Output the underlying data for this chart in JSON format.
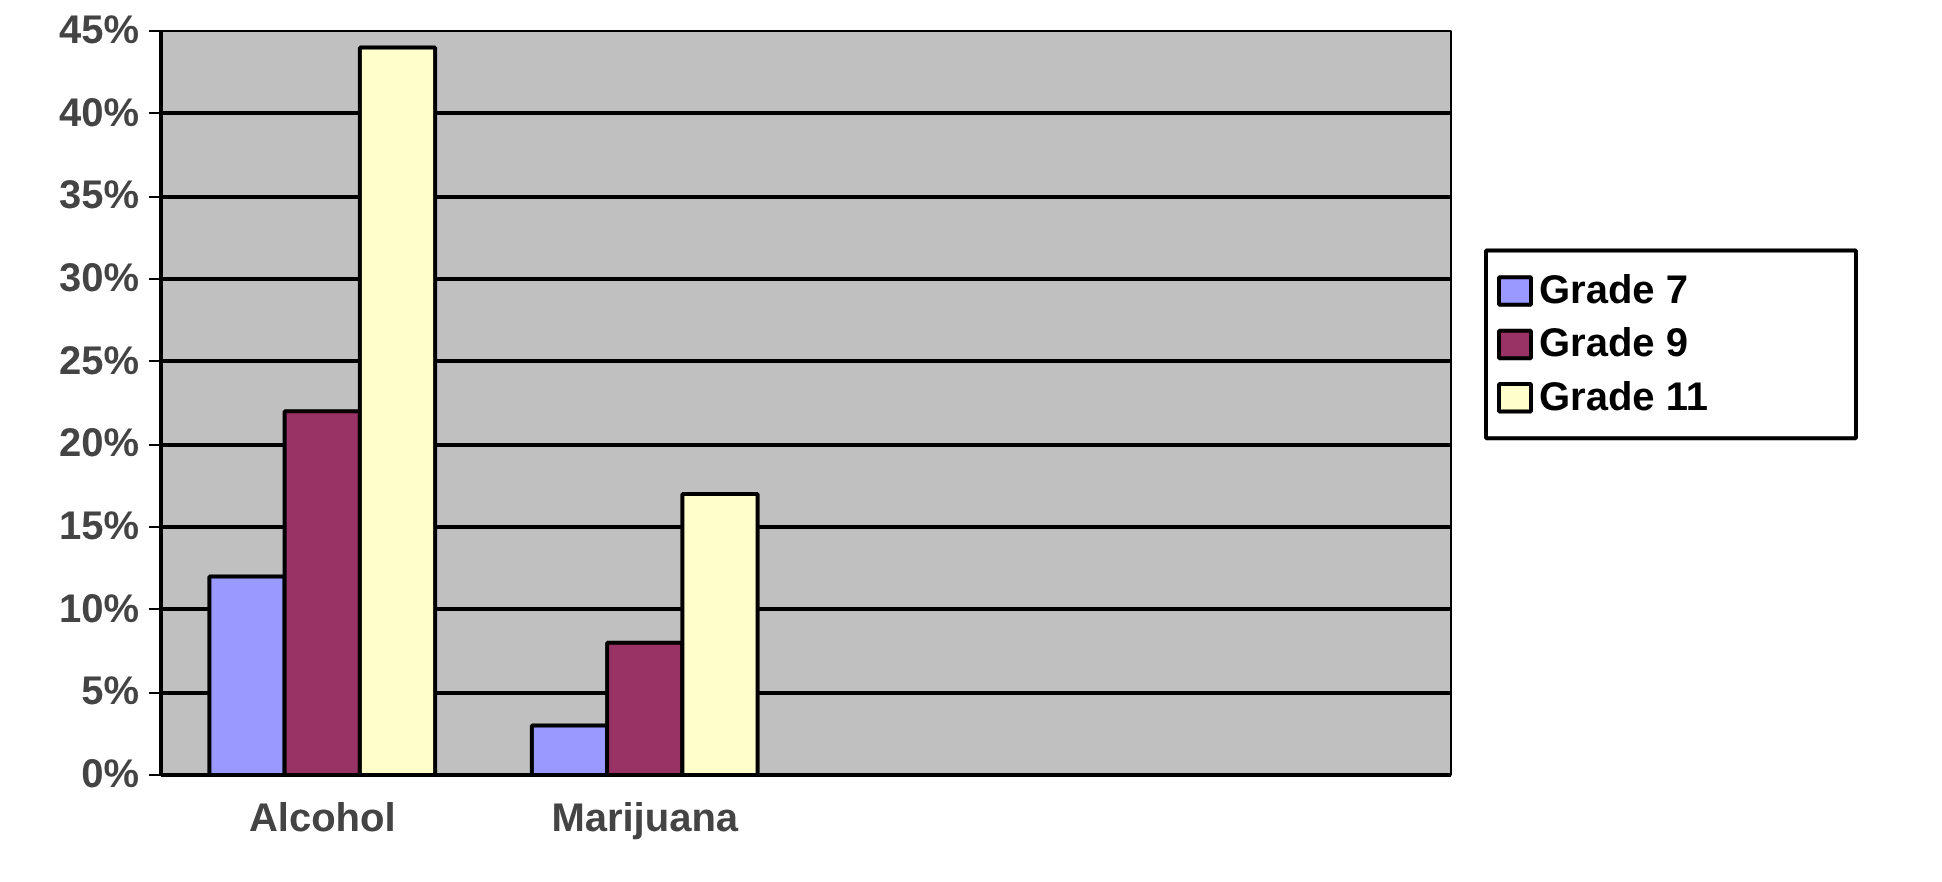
{
  "chart_data": {
    "type": "bar",
    "categories": [
      "Alcohol",
      "Marijuana",
      null,
      null
    ],
    "series": [
      {
        "name": "Grade 7",
        "color": "#9999ff",
        "values": [
          12,
          3,
          null,
          null
        ]
      },
      {
        "name": "Grade 9",
        "color": "#993366",
        "values": [
          22,
          8,
          null,
          null
        ]
      },
      {
        "name": "Grade 11",
        "color": "#ffffcc",
        "values": [
          44,
          17,
          null,
          null
        ]
      }
    ],
    "ylim": [
      0,
      45
    ],
    "yticks": [
      {
        "value": 0,
        "label": "0%"
      },
      {
        "value": 5,
        "label": "5%"
      },
      {
        "value": 10,
        "label": "10%"
      },
      {
        "value": 15,
        "label": "15%"
      },
      {
        "value": 20,
        "label": "20%"
      },
      {
        "value": 25,
        "label": "25%"
      },
      {
        "value": 30,
        "label": "30%"
      },
      {
        "value": 35,
        "label": "35%"
      },
      {
        "value": 40,
        "label": "40%"
      },
      {
        "value": 45,
        "label": "45%"
      }
    ],
    "grid": "y",
    "legend": "right"
  }
}
